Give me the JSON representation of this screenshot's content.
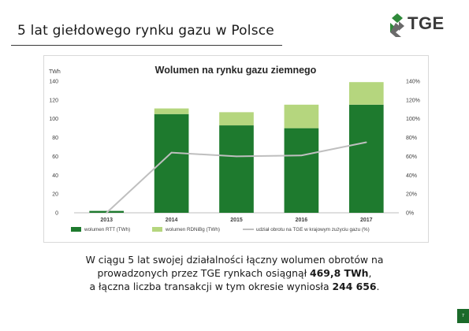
{
  "header": {
    "title": "5 lat giełdowego rynku gazu w Polsce",
    "logo_text": "TGE"
  },
  "colors": {
    "rtt_bar": "#1e7a2e",
    "ronibg_bar": "#b5d67e",
    "share_line": "#bfbfbf",
    "axis_text": "#404040",
    "logo_green": "#2f8a3a"
  },
  "chart_data": {
    "type": "bar",
    "title": "Wolumen na rynku gazu ziemnego",
    "ylabel": "TWh",
    "categories": [
      "2013",
      "2014",
      "2015",
      "2016",
      "2017"
    ],
    "ylim": [
      0,
      140
    ],
    "yticks": [
      "0",
      "20",
      "40",
      "60",
      "80",
      "100",
      "120",
      "140"
    ],
    "y2lim": [
      0,
      140
    ],
    "y2ticks": [
      "0%",
      "20%",
      "40%",
      "60%",
      "80%",
      "100%",
      "120%",
      "140%"
    ],
    "stacked": true,
    "series": [
      {
        "name": "wolumen RTT (TWh)",
        "type": "bar",
        "values": [
          2,
          105,
          93,
          90,
          115
        ]
      },
      {
        "name": "wolumen RDNiBg (TWh)",
        "type": "bar",
        "values": [
          0,
          6,
          14,
          25,
          24
        ]
      },
      {
        "name": "udział obrotu na TGE w krajowym zużyciu gazu (%)",
        "type": "line",
        "axis": "right",
        "values": [
          0,
          64,
          60,
          61,
          75
        ]
      }
    ],
    "grid": false,
    "legend_position": "bottom"
  },
  "caption": {
    "line1": "W ciągu 5 lat swojej działalności łączny wolumen obrotów na",
    "line2": "prowadzonych przez TGE rynkach osiągnął ",
    "line2_bold": "469,8 TWh",
    "line2_end": ",",
    "line3": "a łączna liczba transakcji w tym okresie wyniosła ",
    "line3_bold": "244 656",
    "line3_end": "."
  },
  "footer": {
    "page_number": "7"
  }
}
